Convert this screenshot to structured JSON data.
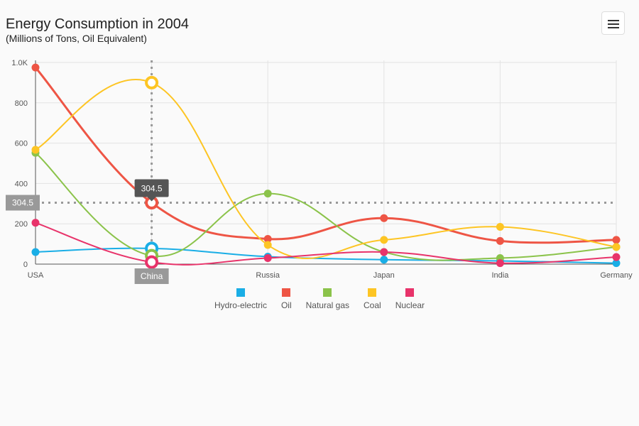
{
  "title": "Energy Consumption in 2004",
  "subtitle": "(Millions of Tons, Oil Equivalent)",
  "menu_icon": "hamburger-menu-icon",
  "chart_data": {
    "type": "line",
    "categories": [
      "USA",
      "China",
      "Russia",
      "Japan",
      "India",
      "Germany"
    ],
    "ylim": [
      0,
      1000
    ],
    "yticks": [
      "0",
      "200",
      "400",
      "600",
      "800",
      "1.0K"
    ],
    "grid": true,
    "series": [
      {
        "name": "Hydro-electric",
        "color": "#1aaee6",
        "values": [
          60,
          78,
          37,
          22,
          16,
          5
        ]
      },
      {
        "name": "Oil",
        "color": "#ee5545",
        "values": [
          975,
          304.5,
          125,
          228,
          115,
          120
        ]
      },
      {
        "name": "Natural gas",
        "color": "#8bc34a",
        "values": [
          552,
          42,
          350,
          60,
          30,
          85
        ]
      },
      {
        "name": "Coal",
        "color": "#fdc524",
        "values": [
          567,
          900,
          95,
          120,
          185,
          85
        ]
      },
      {
        "name": "Nuclear",
        "color": "#e8336a",
        "values": [
          205,
          10,
          30,
          60,
          5,
          35
        ]
      }
    ],
    "crosshair": {
      "category_label": "China",
      "value_label": "304.5",
      "tooltip": "304.5"
    },
    "legend_position": "bottom"
  }
}
